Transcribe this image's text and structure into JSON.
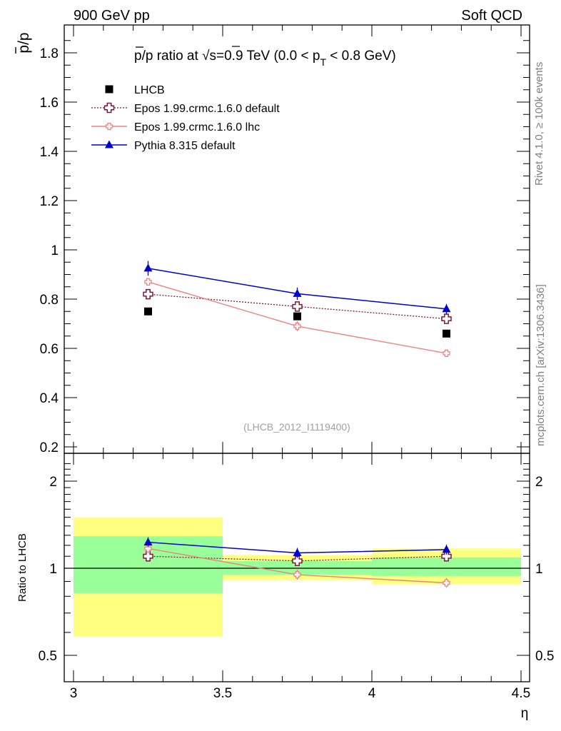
{
  "header": {
    "left": "900 GeV pp",
    "right": "Soft QCD"
  },
  "side": {
    "rivet": "Rivet 4.1.0, ≥ 100k events",
    "mcplots": "mcplots.cern.ch [arXiv:1306.3436]"
  },
  "chart_data": [
    {
      "type": "scatter",
      "title": "p̄/p ratio at √s=0.9 TeV (0.0 < pT < 0.8 GeV)",
      "title_parts": {
        "pre": "p/p ratio at ",
        "sqrt": "√",
        "s": "s",
        "mid": "=0.9 TeV (0.0 < p",
        "sub": "T",
        "post": " < 0.8 GeV)"
      },
      "ylabel": "p/p",
      "xlim": [
        3,
        4.5
      ],
      "ylim": [
        0.2,
        1.9
      ],
      "yticks": [
        0.2,
        0.4,
        0.6,
        0.8,
        1,
        1.2,
        1.4,
        1.6,
        1.8
      ],
      "watermark": "(LHCB_2012_I1119400)",
      "x": [
        3.25,
        3.75,
        4.25
      ],
      "series": [
        {
          "name": "LHCB",
          "color": "#000000",
          "values": [
            0.75,
            0.73,
            0.66
          ],
          "errors": [
            0.01,
            0.01,
            0.01
          ]
        },
        {
          "name": "Epos 1.99.crmc.1.6.0 default",
          "color": "#7a1a3a",
          "values": [
            0.82,
            0.77,
            0.72
          ],
          "errors": [
            0.015,
            0.015,
            0.015
          ]
        },
        {
          "name": "Epos 1.99.crmc.1.6.0 lhc",
          "color": "#f08080",
          "values": [
            0.87,
            0.69,
            0.58
          ],
          "errors": [
            0.015,
            0.02,
            0.015
          ]
        },
        {
          "name": "Pythia 8.315 default",
          "color": "#0000cc",
          "values": [
            0.925,
            0.822,
            0.76
          ],
          "errors": [
            0.03,
            0.025,
            0.02
          ]
        }
      ]
    },
    {
      "type": "scatter",
      "ylabel": "Ratio to LHCB",
      "xlabel": "η",
      "xlim": [
        3,
        4.5
      ],
      "ylim": [
        0.4,
        2.4
      ],
      "yscale": "log",
      "xticks": [
        3,
        3.5,
        4,
        4.5
      ],
      "xtick_labels": [
        "3",
        "3.5",
        "4",
        "4.5"
      ],
      "yticks": [
        0.5,
        1,
        2
      ],
      "ytick_labels": [
        "0.5",
        "1",
        "2"
      ],
      "bands": [
        {
          "x0": 3.0,
          "x1": 3.5,
          "yellow": [
            0.58,
            1.5
          ],
          "green": [
            0.82,
            1.29
          ]
        },
        {
          "x0": 3.5,
          "x1": 4.0,
          "yellow": [
            0.91,
            1.11
          ],
          "green": [
            0.95,
            1.06
          ]
        },
        {
          "x0": 4.0,
          "x1": 4.5,
          "yellow": [
            0.88,
            1.17
          ],
          "green": [
            0.94,
            1.09
          ]
        }
      ],
      "x": [
        3.25,
        3.75,
        4.25
      ],
      "series": [
        {
          "name": "Epos 1.99.crmc.1.6.0 default",
          "color": "#7a1a3a",
          "values": [
            1.1,
            1.06,
            1.1
          ]
        },
        {
          "name": "Epos 1.99.crmc.1.6.0 lhc",
          "color": "#f08080",
          "values": [
            1.17,
            0.95,
            0.89
          ]
        },
        {
          "name": "Pythia 8.315 default",
          "color": "#0000cc",
          "values": [
            1.23,
            1.13,
            1.16
          ]
        }
      ]
    }
  ]
}
